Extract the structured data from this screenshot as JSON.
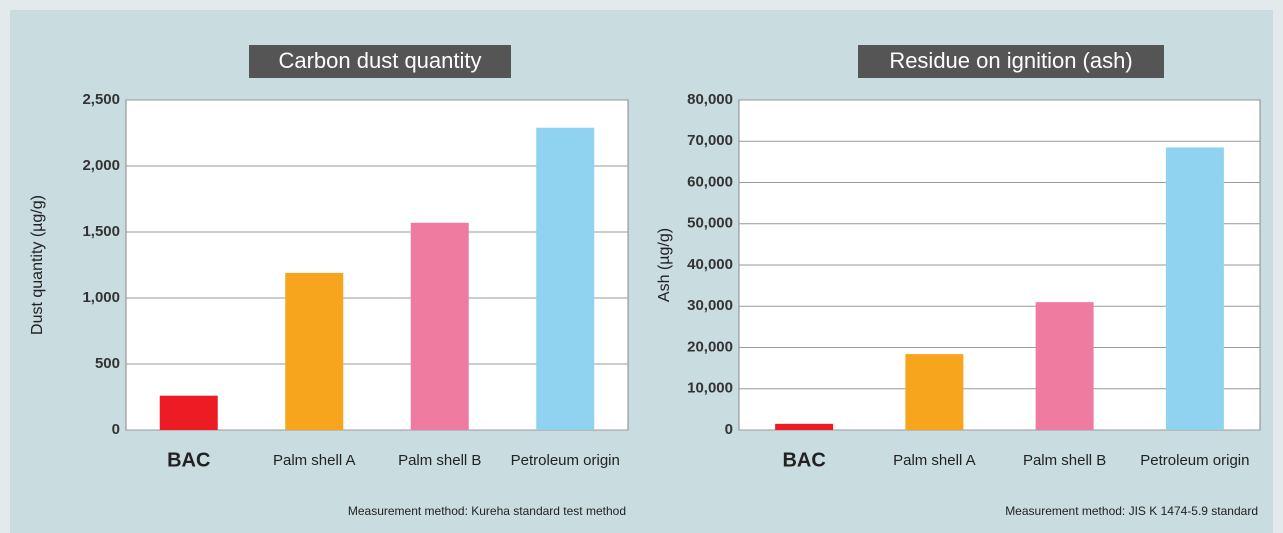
{
  "chart_data": [
    {
      "type": "bar",
      "title": "Carbon dust quantity",
      "y_label": "Dust quantity (µg/g)",
      "categories": [
        "BAC",
        "Palm shell A",
        "Palm shell B",
        "Petroleum origin"
      ],
      "values": [
        260,
        1190,
        1570,
        2290
      ],
      "colors": [
        "#ed1c24",
        "#f7a51c",
        "#f07ba0",
        "#8fd3f0"
      ],
      "ylim": [
        0,
        2500
      ],
      "yticks": [
        0,
        500,
        {
          "value": 1000,
          "label": "1,000"
        },
        {
          "value": 1500,
          "label": "1,500"
        },
        {
          "value": 2000,
          "label": "2,000"
        },
        {
          "value": 2500,
          "label": "2,500"
        }
      ],
      "grid": true,
      "note": "Measurement method: Kureha standard test method"
    },
    {
      "type": "bar",
      "title": "Residue on ignition (ash)",
      "y_label": "Ash (µg/g)",
      "categories": [
        "BAC",
        "Palm shell A",
        "Palm shell B",
        "Petroleum origin"
      ],
      "values": [
        1500,
        18400,
        31000,
        68500
      ],
      "colors": [
        "#ed1c24",
        "#f7a51c",
        "#f07ba0",
        "#8fd3f0"
      ],
      "ylim": [
        0,
        80000
      ],
      "yticks": [
        0,
        {
          "value": 10000,
          "label": "10,000"
        },
        {
          "value": 20000,
          "label": "20,000"
        },
        {
          "value": 30000,
          "label": "30,000"
        },
        {
          "value": 40000,
          "label": "40,000"
        },
        {
          "value": 50000,
          "label": "50,000"
        },
        {
          "value": 60000,
          "label": "60,000"
        },
        {
          "value": 70000,
          "label": "70,000"
        },
        {
          "value": 80000,
          "label": "80,000"
        }
      ],
      "grid": true,
      "note": "Measurement method: JIS K 1474-5.9 standard"
    }
  ]
}
